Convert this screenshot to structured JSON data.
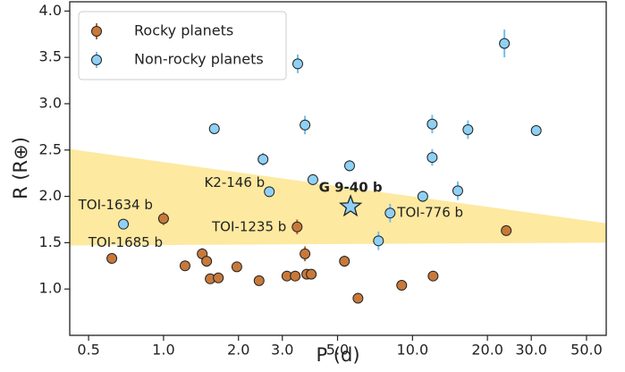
{
  "chart_data": {
    "type": "scatter",
    "xlabel": "P (d)",
    "ylabel": "R (R⊕)",
    "xscale": "log",
    "xlim": [
      0.42,
      60
    ],
    "ylim": [
      0.5,
      4.1
    ],
    "xticks": [
      0.5,
      {
        "value": 1,
        "label": "1.0"
      },
      {
        "value": 2,
        "label": "2.0"
      },
      {
        "value": 3,
        "label": "3.0"
      },
      {
        "value": 5,
        "label": "5.0"
      },
      {
        "value": 10,
        "label": "10.0"
      },
      {
        "value": 20,
        "label": "20.0"
      },
      {
        "value": 30,
        "label": "30.0"
      },
      {
        "value": 50,
        "label": "50.0"
      }
    ],
    "yticks": [
      {
        "value": 1,
        "label": "1.0"
      },
      1.5,
      {
        "value": 2,
        "label": "2.0"
      },
      2.5,
      {
        "value": 3,
        "label": "3.0"
      },
      3.5,
      {
        "value": 4,
        "label": "4.0"
      }
    ],
    "legend": "upper left",
    "band": {
      "color": "#fde9a0",
      "x": [
        0.42,
        60
      ],
      "upper": [
        2.51,
        1.71
      ],
      "lower": [
        1.47,
        1.5
      ]
    },
    "series": [
      {
        "name": "Rocky planets",
        "color": "#c8793a",
        "error_color": "#a86a34",
        "x": [
          0.62,
          1.0,
          1.22,
          1.43,
          1.49,
          1.54,
          1.66,
          1.97,
          2.42,
          3.13,
          3.38,
          3.44,
          3.7,
          3.76,
          3.92,
          5.33,
          6.04,
          9.05,
          12.1,
          23.8
        ],
        "values": [
          1.33,
          1.76,
          1.25,
          1.38,
          1.3,
          1.11,
          1.12,
          1.24,
          1.09,
          1.14,
          1.14,
          1.67,
          1.38,
          1.16,
          1.16,
          1.3,
          0.9,
          1.04,
          1.14,
          1.63
        ],
        "yerr": [
          0.05,
          0.07,
          0.05,
          0.06,
          0.06,
          0.05,
          0.05,
          0.05,
          0.05,
          0.05,
          0.05,
          0.08,
          0.08,
          0.05,
          0.05,
          0.06,
          0.05,
          0.05,
          0.05,
          0.04
        ],
        "point_labels": [
          null,
          "TOI-1634 b",
          null,
          null,
          null,
          null,
          null,
          null,
          null,
          null,
          null,
          "TOI-1235 b",
          null,
          null,
          null,
          null,
          null,
          null,
          null,
          null
        ]
      },
      {
        "name": "Non-rocky planets",
        "color": "#8fd0f5",
        "error_color": "#6fbfee",
        "x": [
          0.69,
          1.6,
          2.51,
          2.66,
          3.46,
          3.7,
          3.98,
          5.59,
          7.3,
          8.13,
          11.0,
          12.0,
          12.0,
          15.2,
          16.7,
          23.4,
          31.4
        ],
        "values": [
          1.7,
          2.73,
          2.4,
          2.05,
          3.43,
          2.77,
          2.18,
          2.33,
          1.52,
          1.82,
          2.0,
          2.42,
          2.78,
          2.06,
          2.72,
          3.65,
          2.71
        ],
        "yerr": [
          0.05,
          0.05,
          0.07,
          0.05,
          0.1,
          0.1,
          0.06,
          0.06,
          0.1,
          0.1,
          0.06,
          0.09,
          0.1,
          0.1,
          0.1,
          0.15,
          0.06
        ],
        "point_labels": [
          "TOI-1685 b",
          null,
          null,
          "K2-146 b",
          null,
          null,
          null,
          null,
          null,
          "TOI-776 b",
          null,
          null,
          null,
          null,
          null,
          null,
          null
        ]
      }
    ],
    "highlight": {
      "label": "G 9-40 b",
      "x": 5.64,
      "y": 1.89,
      "yerr": 0.05,
      "color": "#8fd0f5"
    }
  }
}
